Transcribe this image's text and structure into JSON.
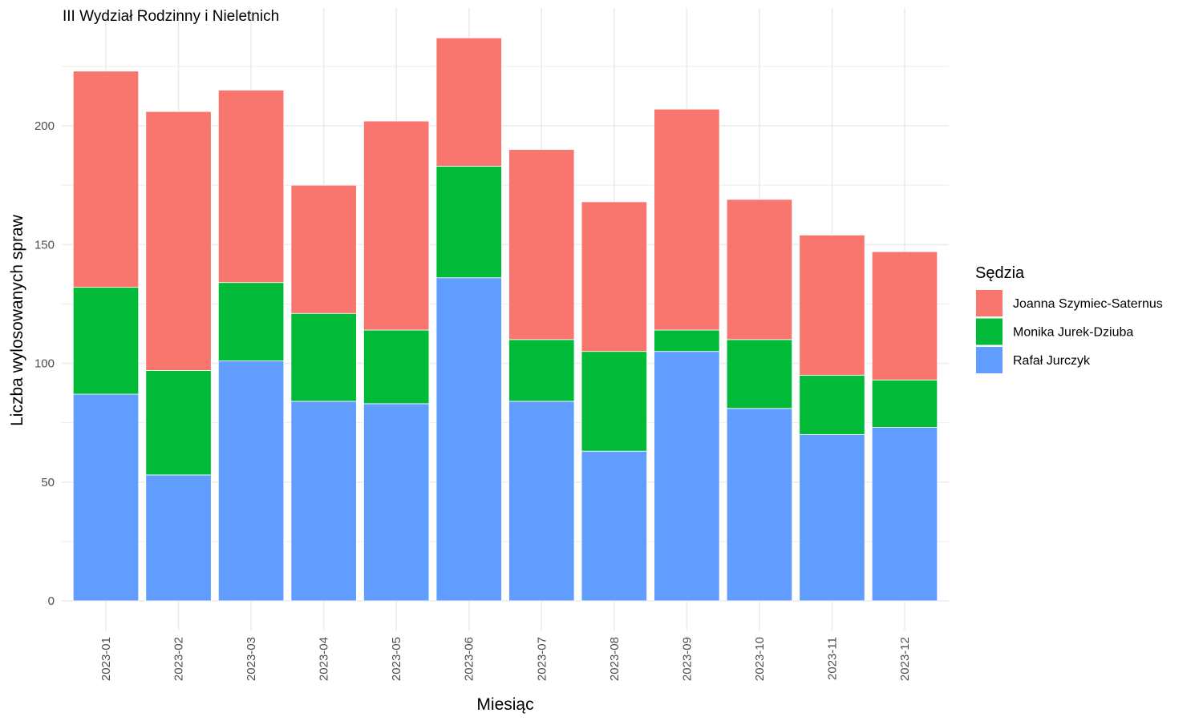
{
  "chart_data": {
    "type": "bar",
    "stacked": true,
    "title": "III Wydział Rodzinny i Nieletnich",
    "xlabel": "Miesiąc",
    "ylabel": "Liczba wylosowanych spraw",
    "categories": [
      "2023-01",
      "2023-02",
      "2023-03",
      "2023-04",
      "2023-05",
      "2023-06",
      "2023-07",
      "2023-08",
      "2023-09",
      "2023-10",
      "2023-11",
      "2023-12"
    ],
    "ylim": [
      0,
      250
    ],
    "yticks": [
      0,
      50,
      100,
      150,
      200
    ],
    "ytick_labels": [
      "0",
      "50",
      "100",
      "150",
      "200"
    ],
    "grid": true,
    "legend": {
      "title": "Sędzia",
      "position": "right"
    },
    "series": [
      {
        "name": "Rafał Jurczyk",
        "color": "#619CFF",
        "values": [
          87,
          53,
          101,
          84,
          83,
          136,
          84,
          63,
          105,
          81,
          70,
          73
        ]
      },
      {
        "name": "Monika Jurek-Dziuba",
        "color": "#00BA38",
        "values": [
          45,
          44,
          33,
          37,
          31,
          47,
          26,
          42,
          9,
          29,
          25,
          20
        ]
      },
      {
        "name": "Joanna Szymiec-Saternus",
        "color": "#F8766D",
        "values": [
          91,
          109,
          81,
          54,
          88,
          54,
          80,
          63,
          93,
          59,
          59,
          54
        ]
      }
    ],
    "legend_order": [
      "Joanna Szymiec-Saternus",
      "Monika Jurek-Dziuba",
      "Rafał Jurczyk"
    ]
  }
}
